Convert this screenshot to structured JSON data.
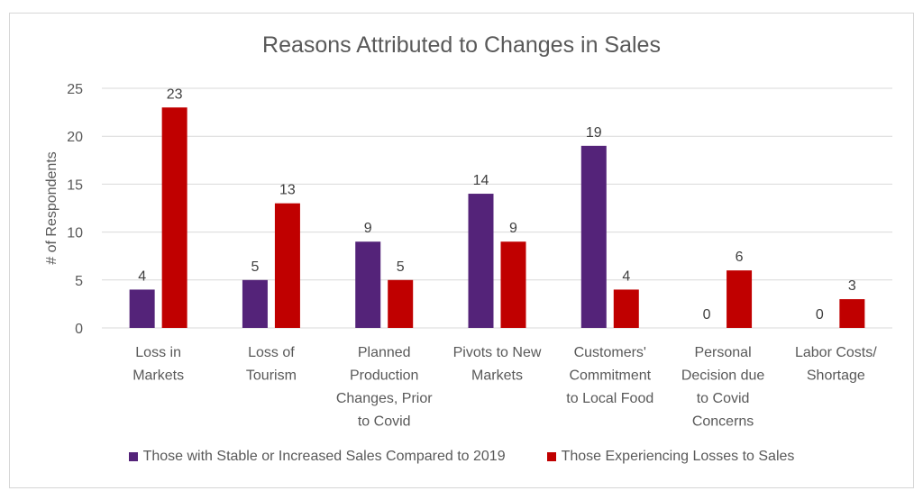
{
  "chart_data": {
    "type": "bar",
    "title": "Reasons Attributed to Changes in Sales",
    "xlabel": "",
    "ylabel": "# of Respondents",
    "ylim": [
      0,
      25
    ],
    "yticks": [
      0,
      5,
      10,
      15,
      20,
      25
    ],
    "grid": true,
    "legend_position": "bottom",
    "categories": [
      [
        "Loss in",
        "Markets"
      ],
      [
        "Loss of",
        "Tourism"
      ],
      [
        "Planned",
        "Production",
        "Changes, Prior",
        "to Covid"
      ],
      [
        "Pivots to New",
        "Markets"
      ],
      [
        "Customers'",
        "Commitment",
        "to Local Food"
      ],
      [
        "Personal",
        "Decision due",
        "to Covid",
        "Concerns"
      ],
      [
        "Labor Costs/",
        "Shortage"
      ]
    ],
    "series": [
      {
        "name": "Those with Stable or Increased Sales Compared to 2019",
        "color": "#542379",
        "values": [
          4,
          5,
          9,
          14,
          19,
          0,
          0
        ]
      },
      {
        "name": "Those Experiencing Losses to Sales",
        "color": "#c00000",
        "values": [
          23,
          13,
          5,
          9,
          4,
          6,
          3
        ]
      }
    ],
    "data_labels": true
  }
}
